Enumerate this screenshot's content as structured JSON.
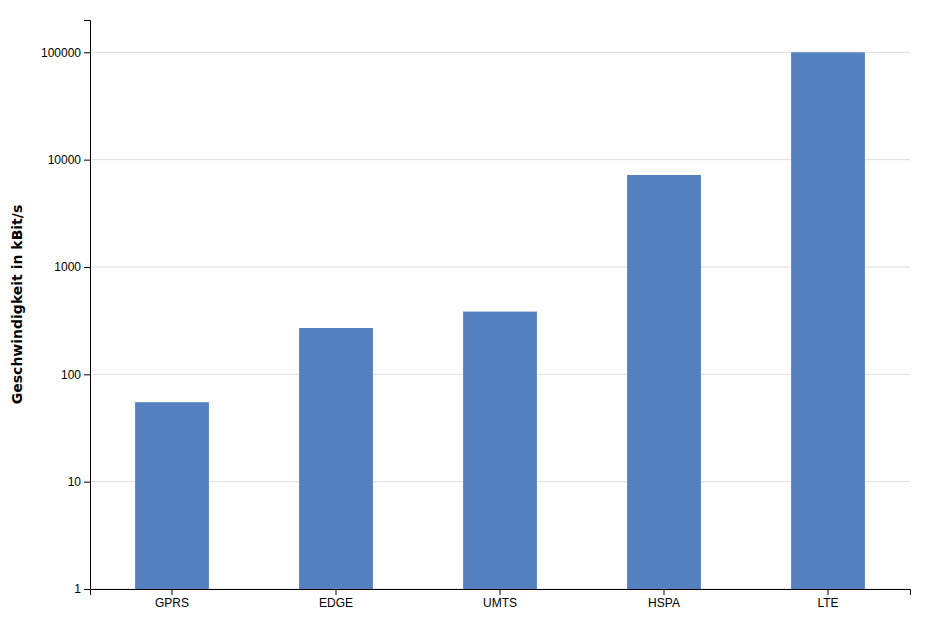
{
  "chart_data": {
    "type": "bar",
    "ylabel": "Geschwindigkeit in kBit/s",
    "categories": [
      "GPRS",
      "EDGE",
      "UMTS",
      "HSPA",
      "LTE"
    ],
    "values": [
      55,
      270,
      384,
      7200,
      100000
    ],
    "color": "#5580c0",
    "log": "y",
    "ylim": [
      1,
      200000
    ],
    "yticks": [
      1,
      10,
      100,
      1000,
      10000,
      100000
    ],
    "grid": true
  }
}
